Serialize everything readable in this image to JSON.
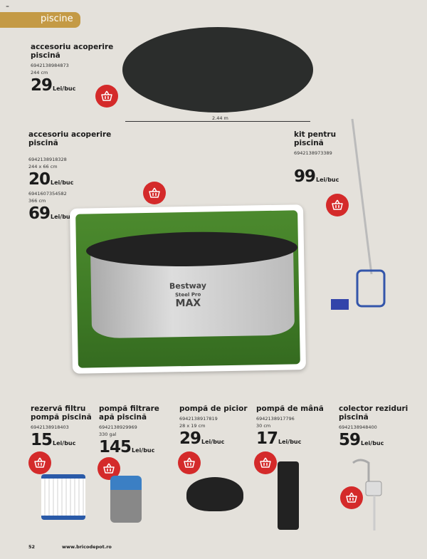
{
  "page": {
    "marker": "=",
    "category": "piscine",
    "page_number": "52",
    "website": "www.bricodepot.ro"
  },
  "colors": {
    "background": "#e4e1db",
    "category_tab": "#c49a45",
    "basket": "#d42a2a"
  },
  "products": [
    {
      "title": "accesoriu acoperire piscină",
      "code": "6942138984873",
      "size": "244 cm",
      "price": "29",
      "unit": "Lei/buc",
      "dimension_label": "2.44 m"
    },
    {
      "title": "accesoriu acoperire piscină",
      "variants": [
        {
          "code": "6942138918328",
          "size": "244 x 66 cm",
          "price": "20",
          "unit": "Lei/buc"
        },
        {
          "code": "6941607354582",
          "size": "366 cm",
          "price": "69",
          "unit": "Lei/buc"
        }
      ],
      "photo_brand": "Bestway",
      "photo_model": "Steel Pro",
      "photo_model2": "MAX"
    },
    {
      "title": "kit pentru piscină",
      "code": "6942138973389",
      "price": "99",
      "unit": "Lei/buc"
    },
    {
      "title": "rezervă filtru pompă piscină",
      "code": "6942138918403",
      "price": "15",
      "unit": "Lei/buc"
    },
    {
      "title": "pompă filtrare apă piscină",
      "code": "6942138929969",
      "size": "330 gal",
      "price": "145",
      "unit": "Lei/buc"
    },
    {
      "title": "pompă de picior",
      "code": "6942138917819",
      "size": "28 x 19 cm",
      "price": "29",
      "unit": "Lei/buc"
    },
    {
      "title": "pompă de mână",
      "code": "6942138917796",
      "size": "30 cm",
      "price": "17",
      "unit": "Lei/buc"
    },
    {
      "title": "colector reziduri piscină",
      "code": "6942138948400",
      "price": "59",
      "unit": "Lei/buc"
    }
  ],
  "icons": {
    "basket": "shopping-basket-icon"
  }
}
